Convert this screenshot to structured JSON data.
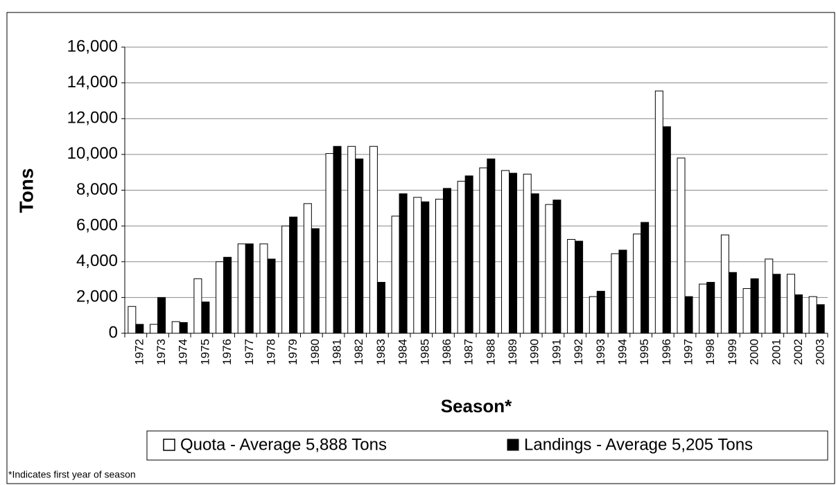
{
  "chart_data": {
    "type": "bar",
    "categories": [
      "1972",
      "1973",
      "1974",
      "1975",
      "1976",
      "1977",
      "1978",
      "1979",
      "1980",
      "1981",
      "1982",
      "1983",
      "1984",
      "1985",
      "1986",
      "1987",
      "1988",
      "1989",
      "1990",
      "1991",
      "1992",
      "1993",
      "1994",
      "1995",
      "1996",
      "1997",
      "1998",
      "1999",
      "2000",
      "2001",
      "2002",
      "2003"
    ],
    "series": [
      {
        "name": "Quota - Average 5,888 Tons",
        "color": "#ffffff",
        "values": [
          1500,
          500,
          650,
          3050,
          4000,
          5000,
          5000,
          6000,
          7250,
          10050,
          10450,
          10450,
          6550,
          7600,
          7500,
          8500,
          9250,
          9100,
          8900,
          7200,
          5250,
          2050,
          4450,
          5550,
          13550,
          9800,
          2750,
          5500,
          2500,
          4150,
          3300,
          2050
        ]
      },
      {
        "name": "Landings - Average 5,205 Tons",
        "color": "#000000",
        "values": [
          500,
          2000,
          600,
          1750,
          4250,
          5000,
          4150,
          6500,
          5850,
          10450,
          9750,
          2850,
          7800,
          7350,
          8100,
          8800,
          9750,
          8950,
          7800,
          7450,
          5150,
          2350,
          4650,
          6200,
          11550,
          2050,
          2850,
          3400,
          3050,
          3300,
          2150,
          1600
        ]
      }
    ],
    "ylabel": "Tons",
    "xlabel": "Season*",
    "footnote": "*Indicates first year of season",
    "ylim": [
      0,
      16000
    ],
    "yticks": [
      0,
      {
        "value": 2000,
        "label": "2,000"
      },
      {
        "value": 4000,
        "label": "4,000"
      },
      {
        "value": 6000,
        "label": "6,000"
      },
      {
        "value": 8000,
        "label": "8,000"
      },
      {
        "value": 10000,
        "label": "10,000"
      },
      {
        "value": 12000,
        "label": "12,000"
      },
      {
        "value": 14000,
        "label": "14,000"
      },
      {
        "value": 16000,
        "label": "16,000"
      }
    ],
    "grid": true,
    "legend": "bottom"
  }
}
